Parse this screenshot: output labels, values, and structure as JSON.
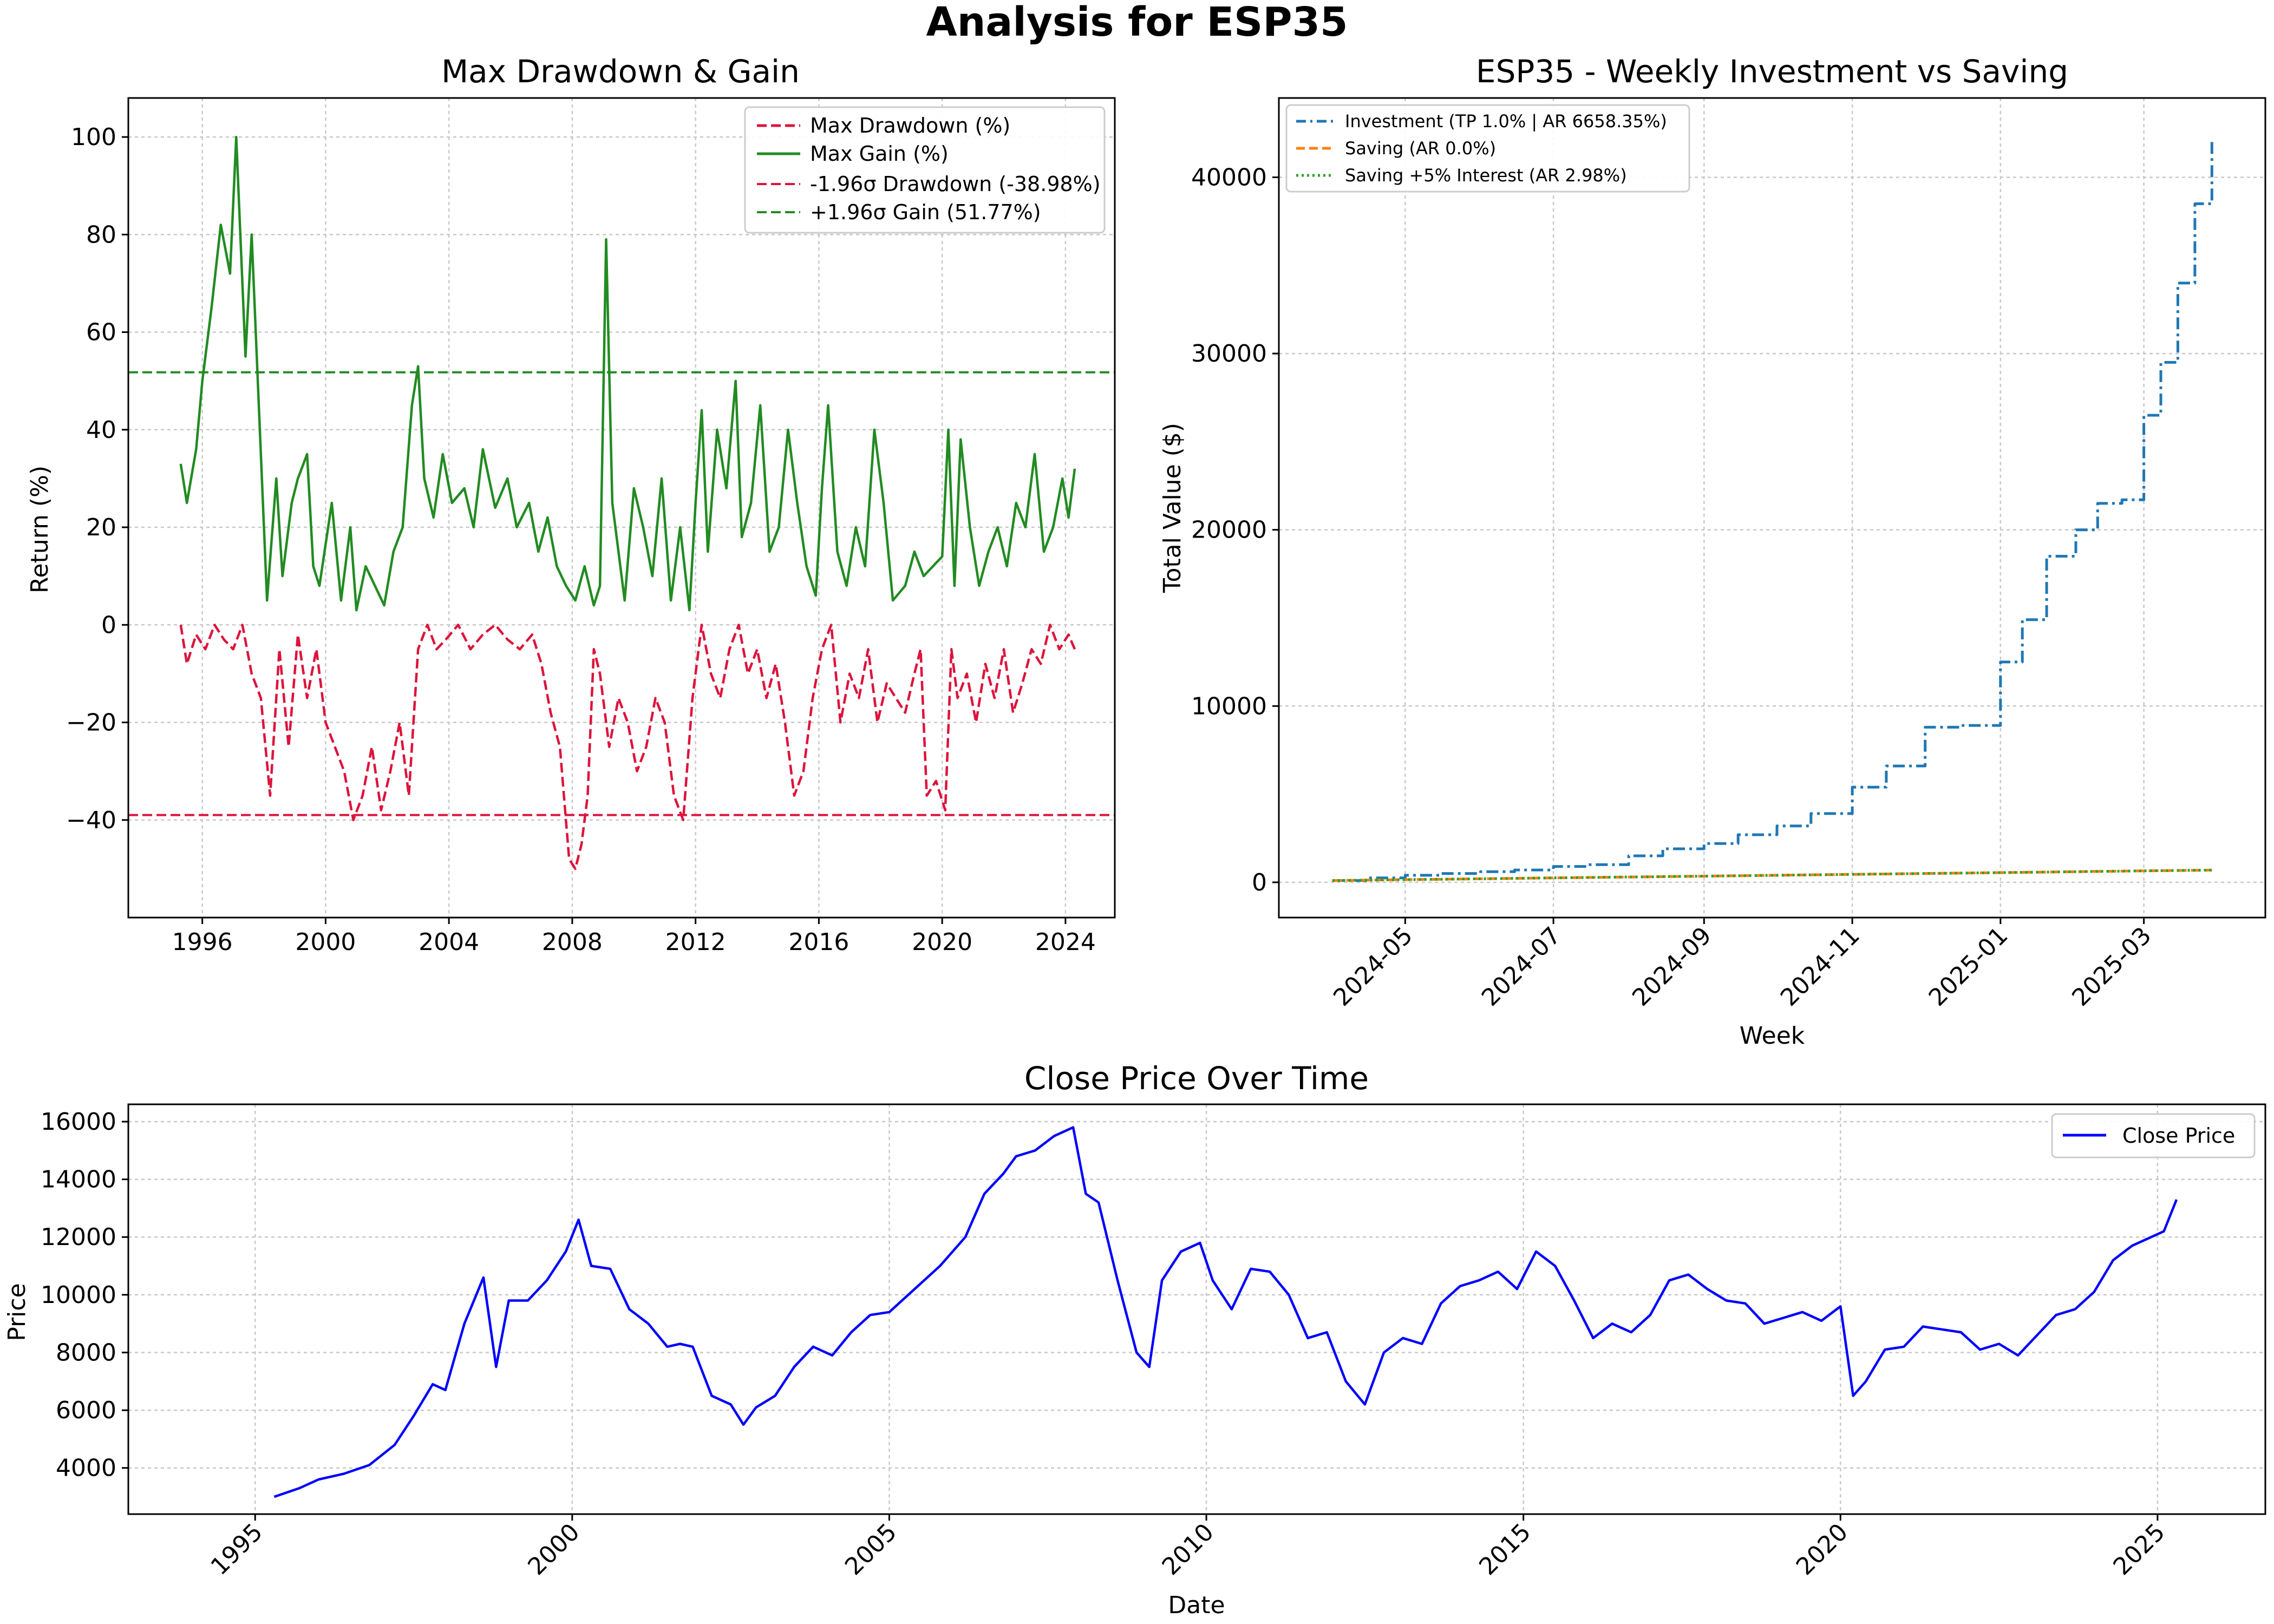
{
  "figure": {
    "suptitle": "Analysis for ESP35"
  },
  "chart_data": [
    {
      "type": "line",
      "title": "Max Drawdown & Gain",
      "xlabel": "",
      "ylabel": "Return (%)",
      "xlim": [
        1993.6,
        2025.6
      ],
      "ylim": [
        -60,
        108
      ],
      "x_ticks": [
        1996,
        2000,
        2004,
        2008,
        2012,
        2016,
        2020,
        2024
      ],
      "y_ticks": [
        -40,
        -20,
        0,
        20,
        40,
        60,
        80,
        100
      ],
      "grid": true,
      "legend_position": "top-right",
      "legend": [
        "Max Drawdown (%)",
        "Max Gain (%)",
        "-1.96σ Drawdown (-38.98%)",
        "+1.96σ Gain (51.77%)"
      ],
      "hlines": [
        {
          "name": "-1.96σ Drawdown (-38.98%)",
          "y": -38.98,
          "color": "#dc143c"
        },
        {
          "name": "+1.96σ Gain (51.77%)",
          "y": 51.77,
          "color": "#228b22"
        }
      ],
      "series": [
        {
          "name": "Max Gain (%)",
          "color": "#228b22",
          "style": "solid",
          "x": [
            1995.3,
            1995.5,
            1995.8,
            1996.0,
            1996.3,
            1996.6,
            1996.9,
            1997.1,
            1997.4,
            1997.6,
            1997.9,
            1998.1,
            1998.4,
            1998.6,
            1998.9,
            1999.1,
            1999.4,
            1999.6,
            1999.8,
            2000.2,
            2000.5,
            2000.8,
            2001.0,
            2001.3,
            2001.6,
            2001.9,
            2002.2,
            2002.5,
            2002.8,
            2003.0,
            2003.2,
            2003.5,
            2003.8,
            2004.1,
            2004.5,
            2004.8,
            2005.1,
            2005.5,
            2005.9,
            2006.2,
            2006.6,
            2006.9,
            2007.2,
            2007.5,
            2007.8,
            2008.1,
            2008.4,
            2008.7,
            2008.9,
            2009.1,
            2009.3,
            2009.5,
            2009.7,
            2010.0,
            2010.3,
            2010.6,
            2010.9,
            2011.2,
            2011.5,
            2011.8,
            2012.0,
            2012.2,
            2012.4,
            2012.7,
            2013.0,
            2013.3,
            2013.5,
            2013.8,
            2014.1,
            2014.4,
            2014.7,
            2015.0,
            2015.3,
            2015.6,
            2015.9,
            2016.1,
            2016.3,
            2016.6,
            2016.9,
            2017.2,
            2017.5,
            2017.8,
            2018.1,
            2018.4,
            2018.8,
            2019.1,
            2019.4,
            2019.7,
            2020.0,
            2020.2,
            2020.4,
            2020.6,
            2020.9,
            2021.2,
            2021.5,
            2021.8,
            2022.1,
            2022.4,
            2022.7,
            2023.0,
            2023.3,
            2023.6,
            2023.9,
            2024.1,
            2024.3
          ],
          "values": [
            33,
            25,
            36,
            50,
            65,
            82,
            72,
            100,
            55,
            80,
            35,
            5,
            30,
            10,
            25,
            30,
            35,
            12,
            8,
            25,
            5,
            20,
            3,
            12,
            8,
            4,
            15,
            20,
            45,
            53,
            30,
            22,
            35,
            25,
            28,
            20,
            36,
            24,
            30,
            20,
            25,
            15,
            22,
            12,
            8,
            5,
            12,
            4,
            8,
            79,
            25,
            15,
            5,
            28,
            20,
            10,
            30,
            5,
            20,
            3,
            25,
            44,
            15,
            40,
            28,
            50,
            18,
            25,
            45,
            15,
            20,
            40,
            25,
            12,
            6,
            28,
            45,
            15,
            8,
            20,
            12,
            40,
            25,
            5,
            8,
            15,
            10,
            12,
            14,
            40,
            8,
            38,
            20,
            8,
            15,
            20,
            12,
            25,
            20,
            35,
            15,
            20,
            30,
            22,
            32
          ]
        },
        {
          "name": "Max Drawdown (%)",
          "color": "#dc143c",
          "style": "dashed",
          "x": [
            1995.3,
            1995.5,
            1995.8,
            1996.1,
            1996.4,
            1996.7,
            1997.0,
            1997.3,
            1997.6,
            1997.9,
            1998.2,
            1998.5,
            1998.8,
            1999.1,
            1999.4,
            1999.7,
            2000.0,
            2000.3,
            2000.6,
            2000.9,
            2001.2,
            2001.5,
            2001.8,
            2002.1,
            2002.4,
            2002.7,
            2003.0,
            2003.3,
            2003.6,
            2003.9,
            2004.3,
            2004.7,
            2005.1,
            2005.5,
            2005.9,
            2006.3,
            2006.7,
            2007.0,
            2007.3,
            2007.6,
            2007.9,
            2008.1,
            2008.3,
            2008.5,
            2008.7,
            2008.9,
            2009.2,
            2009.5,
            2009.8,
            2010.1,
            2010.4,
            2010.7,
            2011.0,
            2011.3,
            2011.6,
            2011.9,
            2012.2,
            2012.5,
            2012.8,
            2013.1,
            2013.4,
            2013.7,
            2014.0,
            2014.3,
            2014.6,
            2014.9,
            2015.2,
            2015.5,
            2015.8,
            2016.1,
            2016.4,
            2016.7,
            2017.0,
            2017.3,
            2017.6,
            2017.9,
            2018.2,
            2018.5,
            2018.8,
            2019.1,
            2019.3,
            2019.5,
            2019.8,
            2020.1,
            2020.3,
            2020.5,
            2020.8,
            2021.1,
            2021.4,
            2021.7,
            2022.0,
            2022.3,
            2022.6,
            2022.9,
            2023.2,
            2023.5,
            2023.8,
            2024.1,
            2024.3
          ],
          "values": [
            0,
            -8,
            -2,
            -5,
            0,
            -3,
            -5,
            0,
            -10,
            -15,
            -35,
            -5,
            -25,
            -2,
            -15,
            -5,
            -20,
            -25,
            -30,
            -40,
            -35,
            -25,
            -38,
            -30,
            -20,
            -35,
            -5,
            0,
            -5,
            -3,
            0,
            -5,
            -2,
            0,
            -3,
            -5,
            -2,
            -8,
            -18,
            -25,
            -48,
            -50,
            -45,
            -35,
            -5,
            -10,
            -25,
            -15,
            -20,
            -30,
            -25,
            -15,
            -20,
            -35,
            -40,
            -15,
            0,
            -10,
            -15,
            -5,
            0,
            -10,
            -5,
            -15,
            -8,
            -20,
            -35,
            -30,
            -15,
            -5,
            0,
            -20,
            -10,
            -15,
            -5,
            -20,
            -12,
            -15,
            -18,
            -10,
            -5,
            -35,
            -32,
            -38,
            -5,
            -15,
            -10,
            -20,
            -8,
            -15,
            -5,
            -18,
            -12,
            -5,
            -8,
            0,
            -5,
            -2,
            -5
          ]
        }
      ]
    },
    {
      "type": "line",
      "title": "ESP35 - Weekly Investment vs Saving",
      "xlabel": "Week",
      "ylabel": "Total Value ($)",
      "x_ticks": [
        "2024-05",
        "2024-07",
        "2024-09",
        "2024-11",
        "2025-01",
        "2025-03"
      ],
      "y_ticks": [
        0,
        10000,
        20000,
        30000,
        40000
      ],
      "ylim": [
        -2000,
        44500
      ],
      "grid": true,
      "legend_position": "top-left",
      "legend": [
        "Investment (TP 1.0% | AR 6658.35%)",
        "Saving (AR 0.0%)",
        "Saving +5% Interest (AR 2.98%)"
      ],
      "series": [
        {
          "name": "Investment (TP 1.0% | AR 6658.35%)",
          "color": "#1f77b4",
          "style": "dashdot",
          "x": [
            "2024-04-01",
            "2024-04-15",
            "2024-05-01",
            "2024-05-15",
            "2024-06-01",
            "2024-06-15",
            "2024-07-01",
            "2024-07-15",
            "2024-08-01",
            "2024-08-15",
            "2024-09-01",
            "2024-09-15",
            "2024-10-01",
            "2024-10-15",
            "2024-11-01",
            "2024-11-15",
            "2024-12-01",
            "2024-12-15",
            "2025-01-01",
            "2025-01-10",
            "2025-01-20",
            "2025-02-01",
            "2025-02-10",
            "2025-02-20",
            "2025-03-01",
            "2025-03-08",
            "2025-03-15",
            "2025-03-22",
            "2025-03-29"
          ],
          "values": [
            100,
            250,
            400,
            500,
            600,
            700,
            900,
            1000,
            1500,
            1900,
            2200,
            2700,
            3200,
            3900,
            5400,
            6600,
            8800,
            8900,
            12500,
            14900,
            18500,
            20000,
            21500,
            21700,
            26500,
            29500,
            34000,
            38500,
            42000
          ]
        },
        {
          "name": "Saving (AR 0.0%)",
          "color": "#ff7f0e",
          "style": "dashed",
          "x": [
            "2024-04-01",
            "2024-05-01",
            "2024-06-01",
            "2024-07-01",
            "2024-08-01",
            "2024-09-01",
            "2024-10-01",
            "2024-11-01",
            "2024-12-01",
            "2025-01-01",
            "2025-02-01",
            "2025-03-01",
            "2025-03-29"
          ],
          "values": [
            100,
            150,
            200,
            250,
            300,
            350,
            400,
            450,
            500,
            550,
            600,
            650,
            690
          ]
        },
        {
          "name": "Saving +5% Interest (AR 2.98%)",
          "color": "#2ca02c",
          "style": "dotted",
          "x": [
            "2024-04-01",
            "2024-05-01",
            "2024-06-01",
            "2024-07-01",
            "2024-08-01",
            "2024-09-01",
            "2024-10-01",
            "2024-11-01",
            "2024-12-01",
            "2025-01-01",
            "2025-02-01",
            "2025-03-01",
            "2025-03-29"
          ],
          "values": [
            100,
            150,
            200,
            250,
            300,
            350,
            400,
            450,
            500,
            550,
            600,
            650,
            695
          ]
        }
      ]
    },
    {
      "type": "line",
      "title": "Close Price Over Time",
      "xlabel": "Date",
      "ylabel": "Price",
      "xlim": [
        1993.0,
        2026.7
      ],
      "ylim": [
        2400,
        16600
      ],
      "x_ticks": [
        1995,
        2000,
        2005,
        2010,
        2015,
        2020,
        2025
      ],
      "y_ticks": [
        4000,
        6000,
        8000,
        10000,
        12000,
        14000,
        16000
      ],
      "grid": true,
      "legend_position": "top-right",
      "legend": [
        "Close Price"
      ],
      "series": [
        {
          "name": "Close Price",
          "color": "#0000ff",
          "style": "solid",
          "x": [
            1995.3,
            1995.7,
            1996.0,
            1996.4,
            1996.8,
            1997.2,
            1997.5,
            1997.8,
            1998.0,
            1998.3,
            1998.6,
            1998.8,
            1999.0,
            1999.3,
            1999.6,
            1999.9,
            2000.1,
            2000.3,
            2000.6,
            2000.9,
            2001.2,
            2001.5,
            2001.7,
            2001.9,
            2002.2,
            2002.5,
            2002.7,
            2002.9,
            2003.2,
            2003.5,
            2003.8,
            2004.1,
            2004.4,
            2004.7,
            2005.0,
            2005.4,
            2005.8,
            2006.2,
            2006.5,
            2006.8,
            2007.0,
            2007.3,
            2007.6,
            2007.9,
            2008.1,
            2008.3,
            2008.6,
            2008.9,
            2009.1,
            2009.3,
            2009.6,
            2009.9,
            2010.1,
            2010.4,
            2010.7,
            2011.0,
            2011.3,
            2011.6,
            2011.9,
            2012.2,
            2012.5,
            2012.8,
            2013.1,
            2013.4,
            2013.7,
            2014.0,
            2014.3,
            2014.6,
            2014.9,
            2015.2,
            2015.5,
            2015.8,
            2016.1,
            2016.4,
            2016.7,
            2017.0,
            2017.3,
            2017.6,
            2017.9,
            2018.2,
            2018.5,
            2018.8,
            2019.1,
            2019.4,
            2019.7,
            2020.0,
            2020.2,
            2020.4,
            2020.7,
            2021.0,
            2021.3,
            2021.6,
            2021.9,
            2022.2,
            2022.5,
            2022.8,
            2023.1,
            2023.4,
            2023.7,
            2024.0,
            2024.3,
            2024.6,
            2024.9,
            2025.1,
            2025.3
          ],
          "values": [
            3000,
            3300,
            3600,
            3800,
            4100,
            4800,
            5800,
            6900,
            6700,
            9000,
            10600,
            7500,
            9800,
            9800,
            10500,
            11500,
            12600,
            11000,
            10900,
            9500,
            9000,
            8200,
            8300,
            8200,
            6500,
            6200,
            5500,
            6100,
            6500,
            7500,
            8200,
            7900,
            8700,
            9300,
            9400,
            10200,
            11000,
            12000,
            13500,
            14200,
            14800,
            15000,
            15500,
            15800,
            13500,
            13200,
            10500,
            8000,
            7500,
            10500,
            11500,
            11800,
            10500,
            9500,
            10900,
            10800,
            10000,
            8500,
            8700,
            7000,
            6200,
            8000,
            8500,
            8300,
            9700,
            10300,
            10500,
            10800,
            10200,
            11500,
            11000,
            9800,
            8500,
            9000,
            8700,
            9300,
            10500,
            10700,
            10200,
            9800,
            9700,
            9000,
            9200,
            9400,
            9100,
            9600,
            6500,
            7000,
            8100,
            8200,
            8900,
            8800,
            8700,
            8100,
            8300,
            7900,
            8600,
            9300,
            9500,
            10100,
            11200,
            11700,
            12000,
            12200,
            13300
          ]
        }
      ]
    }
  ]
}
